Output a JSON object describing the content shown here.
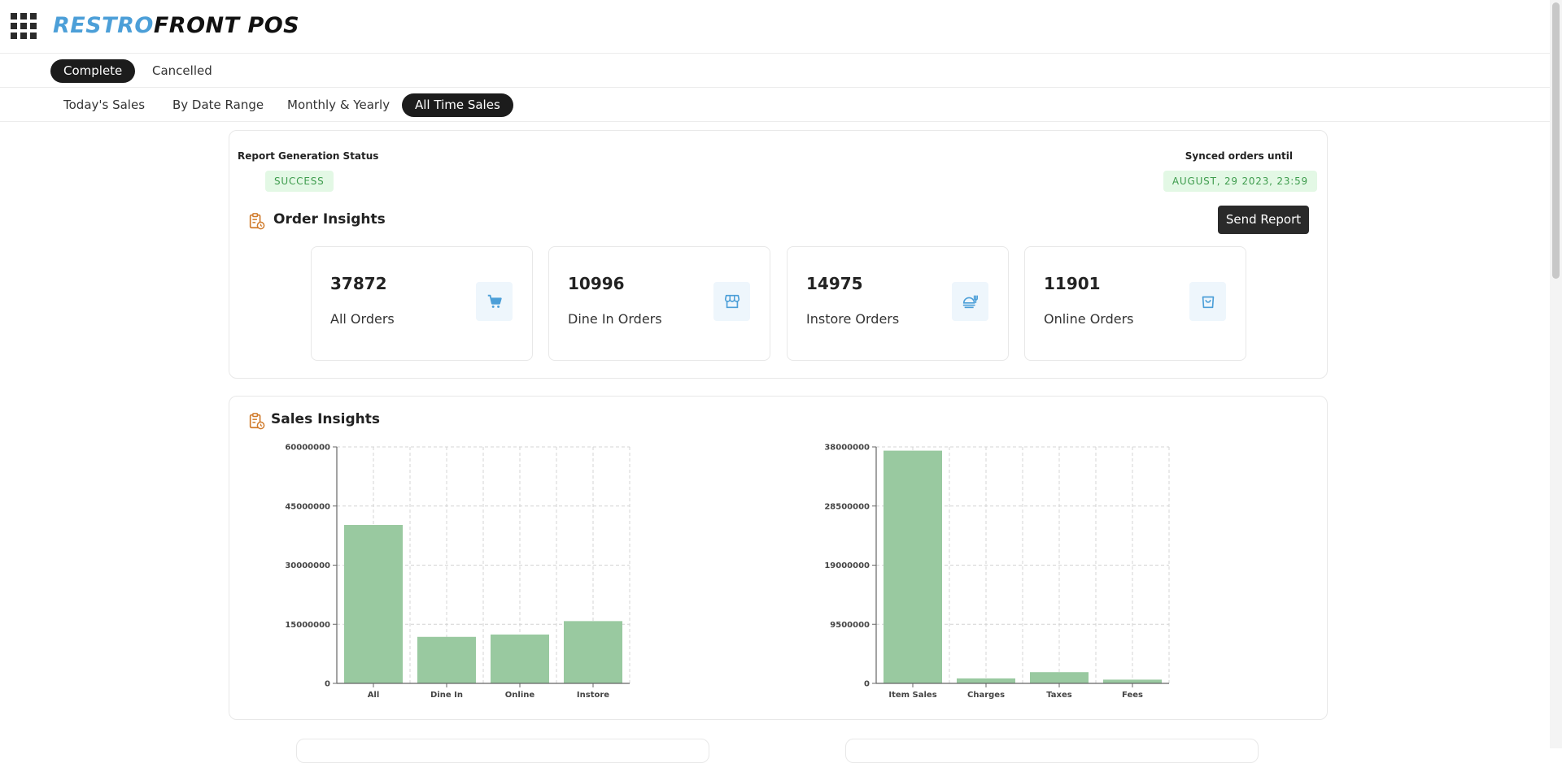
{
  "app": {
    "brand_part1": "RESTRO",
    "brand_part2": "FRONT POS"
  },
  "status_tabs": [
    {
      "label": "Complete",
      "active": true
    },
    {
      "label": "Cancelled",
      "active": false
    }
  ],
  "range_tabs": [
    {
      "label": "Today's Sales",
      "active": false
    },
    {
      "label": "By Date Range",
      "active": false
    },
    {
      "label": "Monthly & Yearly",
      "active": false
    },
    {
      "label": "All Time Sales",
      "active": true
    }
  ],
  "report": {
    "status_label": "Report Generation Status",
    "status_value": "SUCCESS",
    "sync_label": "Synced orders until",
    "sync_value": "AUGUST, 29 2023, 23:59"
  },
  "order_insights": {
    "title": "Order Insights",
    "send_button": "Send Report",
    "stats": [
      {
        "value": "37872",
        "label": "All Orders",
        "icon": "cart-icon"
      },
      {
        "value": "10996",
        "label": "Dine In Orders",
        "icon": "store-icon"
      },
      {
        "value": "14975",
        "label": "Instore Orders",
        "icon": "food-tray-icon"
      },
      {
        "value": "11901",
        "label": "Online Orders",
        "icon": "shopping-bag-icon"
      }
    ]
  },
  "sales_insights": {
    "title": "Sales Insights"
  },
  "colors": {
    "bar": "#99c9a0",
    "badge_bg": "#e3f8e5",
    "badge_text": "#3e9c4d",
    "brand_blue": "#4c9fd8",
    "icon_accent": "#d07a2a"
  },
  "chart_data": [
    {
      "type": "bar",
      "categories": [
        "All",
        "Dine In",
        "Online",
        "Instore"
      ],
      "values": [
        40200000,
        11800000,
        12400000,
        15800000
      ],
      "yticks": [
        "0",
        "15000000",
        "30000000",
        "45000000",
        "60000000"
      ],
      "ylim": [
        0,
        60000000
      ],
      "grid": true
    },
    {
      "type": "bar",
      "categories": [
        "Item Sales",
        "Charges",
        "Taxes",
        "Fees"
      ],
      "values": [
        37400000,
        800000,
        1800000,
        600000
      ],
      "yticks": [
        "0",
        "9500000",
        "19000000",
        "28500000",
        "38000000"
      ],
      "ylim": [
        0,
        38000000
      ],
      "grid": true
    }
  ]
}
